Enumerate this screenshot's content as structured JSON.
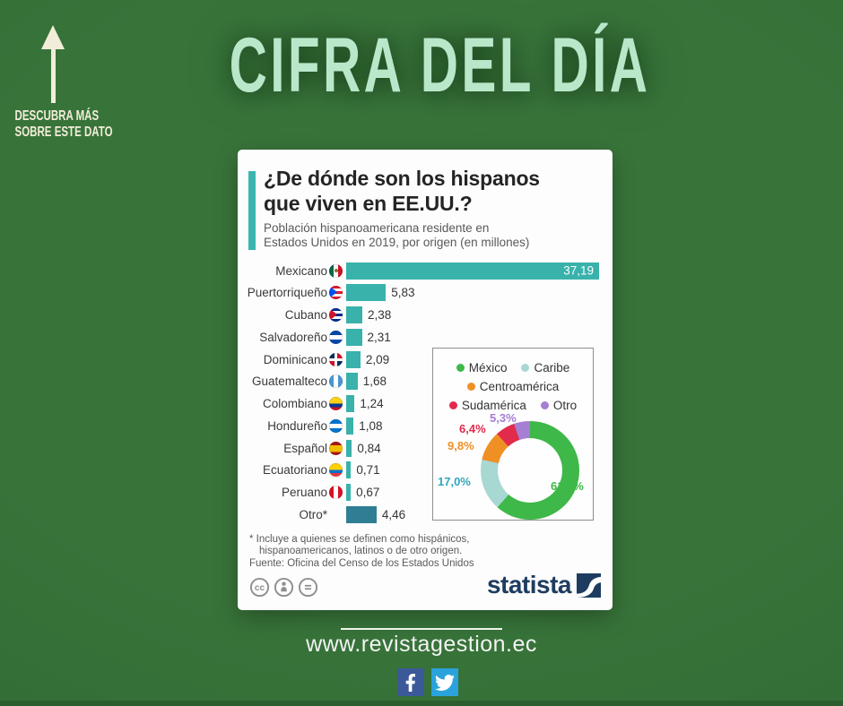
{
  "banner": {
    "title": "CIFRA DEL DÍA",
    "discover_line1": "DESCUBRA MÁS",
    "discover_line2": "SOBRE ESTE DATO"
  },
  "colors": {
    "background": "#38743a",
    "background_edge": "#2f6833",
    "bottom_strip": "#2b5e2e",
    "title_mint": "#b9e7ca",
    "cream": "#f2edd9",
    "card_accent": "#3ab5b0",
    "statista_navy": "#1e3c5f",
    "facebook_blue": "#3b5998",
    "twitter_blue": "#2aa3dc"
  },
  "card": {
    "title_line1": "¿De dónde son los hispanos",
    "title_line2": "que viven en EE.UU.?",
    "subtitle_line1": "Población hispanoamericana residente en",
    "subtitle_line2": "Estados Unidos en 2019, por origen (en millones)",
    "footnote_line1": "* Incluye a quienes se definen como hispánicos,",
    "footnote_line2": "hispanoamericanos, latinos o de otro origen.",
    "source": "Fuente: Oficina del Censo de los Estados Unidos",
    "brand": "statista"
  },
  "chart_data": [
    {
      "type": "bar",
      "orientation": "horizontal",
      "title": "¿De dónde son los hispanos que viven en EE.UU.?",
      "subtitle": "Población hispanoamericana residente en Estados Unidos en 2019, por origen (en millones)",
      "categories": [
        "Mexicano",
        "Puertorriqueño",
        "Cubano",
        "Salvadoreño",
        "Dominicano",
        "Guatemalteco",
        "Colombiano",
        "Hondureño",
        "Español",
        "Ecuatoriano",
        "Peruano",
        "Otro*"
      ],
      "values": [
        37.19,
        5.83,
        2.38,
        2.31,
        2.09,
        1.68,
        1.24,
        1.08,
        0.84,
        0.71,
        0.67,
        4.46
      ],
      "value_labels": [
        "37,19",
        "5,83",
        "2,38",
        "2,31",
        "2,09",
        "1,68",
        "1,24",
        "1,08",
        "0,84",
        "0,71",
        "0,67",
        "4,46"
      ],
      "flags": [
        "mexico",
        "puerto-rico",
        "cuba",
        "el-salvador",
        "dominican-republic",
        "guatemala",
        "colombia",
        "honduras",
        "spain",
        "ecuador",
        "peru",
        null
      ],
      "bar_color": "#38b2ab",
      "last_bar_color": "#2f7e93",
      "xlim": [
        0,
        37.19
      ],
      "unit": "millones",
      "grid": false
    },
    {
      "type": "pie",
      "donut": true,
      "categories": [
        "México",
        "Caribe",
        "Centroamérica",
        "Sudamérica",
        "Otro"
      ],
      "values": [
        61.5,
        17.0,
        9.8,
        6.4,
        5.3
      ],
      "slice_labels": [
        "61,5%",
        "17,0%",
        "9,8%",
        "6,4%",
        "5,3%"
      ],
      "colors": [
        "#3eb848",
        "#a8d8d2",
        "#ef9025",
        "#e12a4c",
        "#a67ed3"
      ],
      "label_colors": [
        "#3eb848",
        "#2fa8bc",
        "#ef9025",
        "#e12a4c",
        "#a67ed3"
      ],
      "legend_rows": [
        [
          "México",
          "Caribe"
        ],
        [
          "Centroamérica"
        ],
        [
          "Sudamérica",
          "Otro"
        ]
      ],
      "legend_position": "top"
    }
  ],
  "footer": {
    "url": "www.revistagestion.ec"
  }
}
